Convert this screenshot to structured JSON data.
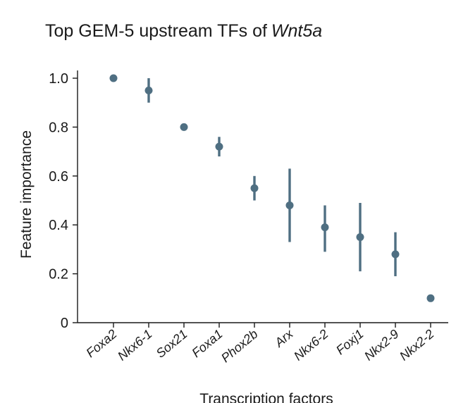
{
  "chart_data": {
    "type": "scatter",
    "title": "Top GEM-5 upstream TFs of",
    "title_italic": "Wnt5a",
    "xlabel": "Transcription factors",
    "ylabel": "Feature importance",
    "ylim": [
      0,
      1.0
    ],
    "yticks": [
      "0",
      "0.2",
      "0.4",
      "0.6",
      "0.8",
      "1.0"
    ],
    "categories": [
      "Foxa2",
      "Nkx6-1",
      "Sox21",
      "Foxa1",
      "Phox2b",
      "Arx",
      "Nkx6-2",
      "Foxj1",
      "Nkx2-9",
      "Nkx2-2"
    ],
    "values": [
      1.0,
      0.95,
      0.8,
      0.72,
      0.55,
      0.48,
      0.39,
      0.35,
      0.28,
      0.1
    ],
    "error_low": [
      1.0,
      0.9,
      0.8,
      0.68,
      0.5,
      0.33,
      0.29,
      0.21,
      0.19,
      0.1
    ],
    "error_high": [
      1.0,
      1.0,
      0.8,
      0.76,
      0.6,
      0.63,
      0.48,
      0.49,
      0.37,
      0.1
    ],
    "marker_color": "#4f6f82",
    "grid": false,
    "legend": "none"
  }
}
